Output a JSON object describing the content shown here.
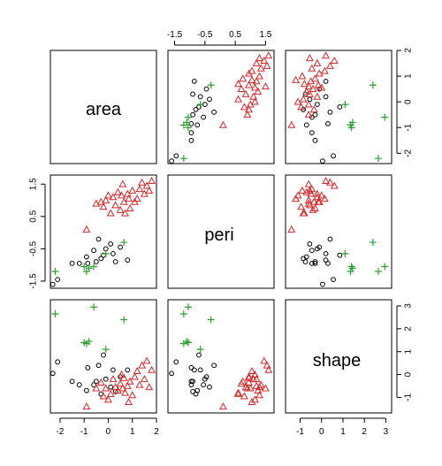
{
  "chart_data": {
    "type": "scatter",
    "kind": "pairs-matrix",
    "variables": [
      "area",
      "peri",
      "shape"
    ],
    "axis_ticks": {
      "area": {
        "labels": [
          "-2",
          "-1",
          "0",
          "1",
          "2"
        ],
        "values": [
          -2,
          -1,
          0,
          1,
          2
        ],
        "range": [
          -2.4,
          2.0
        ]
      },
      "peri": {
        "labels": [
          "-1.5",
          "-0.5",
          "0.5",
          "1.5"
        ],
        "values": [
          -1.5,
          -0.5,
          0.5,
          1.5
        ],
        "range": [
          -1.72,
          1.78
        ]
      },
      "shape": {
        "labels": [
          "-1",
          "0",
          "1",
          "2",
          "3"
        ],
        "values": [
          -1,
          0,
          1,
          2,
          3
        ],
        "range": [
          -1.68,
          3.27
        ]
      }
    },
    "groups": [
      {
        "marker": "circle",
        "color": "#000000",
        "points": [
          {
            "area": -2.1,
            "peri": -1.45,
            "shape": 0.55
          },
          {
            "area": -1.5,
            "peri": -0.95,
            "shape": -0.3
          },
          {
            "area": -1.2,
            "peri": -0.95,
            "shape": -0.45
          },
          {
            "area": -0.9,
            "peri": -0.75,
            "shape": -0.7
          },
          {
            "area": -0.85,
            "peri": -0.95,
            "shape": 0.3
          },
          {
            "area": -0.6,
            "peri": -0.55,
            "shape": -0.45
          },
          {
            "area": -0.5,
            "peri": -0.9,
            "shape": -0.3
          },
          {
            "area": -0.4,
            "peri": -0.2,
            "shape": 0.4
          },
          {
            "area": -0.2,
            "peri": -0.7,
            "shape": 0.85
          },
          {
            "area": -0.1,
            "peri": -0.5,
            "shape": -0.2
          },
          {
            "area": 0.1,
            "peri": -0.35,
            "shape": -0.55
          },
          {
            "area": 0.2,
            "peri": -0.65,
            "shape": 0.2
          },
          {
            "area": 0.3,
            "peri": -0.9,
            "shape": -0.75
          },
          {
            "area": 0.5,
            "peri": -0.45,
            "shape": -0.1
          },
          {
            "area": 0.8,
            "peri": -0.85,
            "shape": 0.2
          },
          {
            "area": -0.3,
            "peri": -0.8,
            "shape": -0.85
          },
          {
            "area": -2.3,
            "peri": -1.6,
            "shape": 0.05
          }
        ]
      },
      {
        "marker": "triangle",
        "color": "#d62728",
        "points": [
          {
            "area": -0.9,
            "peri": 0.1,
            "shape": -1.4
          },
          {
            "area": -0.5,
            "peri": 0.9,
            "shape": -0.6
          },
          {
            "area": -0.3,
            "peri": 0.95,
            "shape": -0.35
          },
          {
            "area": -0.1,
            "peri": 1.0,
            "shape": -0.6
          },
          {
            "area": 0.1,
            "peri": 0.6,
            "shape": -0.85
          },
          {
            "area": 0.2,
            "peri": 1.1,
            "shape": -0.2
          },
          {
            "area": 0.3,
            "peri": 0.85,
            "shape": -0.55
          },
          {
            "area": 0.4,
            "peri": 1.25,
            "shape": -0.7
          },
          {
            "area": 0.5,
            "peri": 0.7,
            "shape": -0.4
          },
          {
            "area": 0.6,
            "peri": 1.5,
            "shape": -0.6
          },
          {
            "area": 0.65,
            "peri": 0.95,
            "shape": -0.15
          },
          {
            "area": 0.7,
            "peri": 0.6,
            "shape": -0.8
          },
          {
            "area": 0.8,
            "peri": 1.2,
            "shape": -0.5
          },
          {
            "area": 0.9,
            "peri": 0.75,
            "shape": -0.3
          },
          {
            "area": 1.0,
            "peri": 1.3,
            "shape": -0.9
          },
          {
            "area": 1.1,
            "peri": 0.95,
            "shape": -0.1
          },
          {
            "area": 1.2,
            "peri": 1.05,
            "shape": 0.15
          },
          {
            "area": 1.3,
            "peri": 1.35,
            "shape": -0.45
          },
          {
            "area": 1.4,
            "peri": 1.55,
            "shape": 0.4
          },
          {
            "area": 1.5,
            "peri": 1.2,
            "shape": -0.2
          },
          {
            "area": 1.6,
            "peri": 1.45,
            "shape": 0.6
          },
          {
            "area": 1.7,
            "peri": 1.3,
            "shape": -0.55
          },
          {
            "area": 1.8,
            "peri": 1.6,
            "shape": 0.2
          },
          {
            "area": 0.0,
            "peri": 1.15,
            "shape": -1.1
          },
          {
            "area": -0.2,
            "peri": 0.8,
            "shape": -0.95
          },
          {
            "area": 0.55,
            "peri": 1.15,
            "shape": 0.0
          },
          {
            "area": 0.85,
            "peri": 1.05,
            "shape": -1.2
          }
        ]
      },
      {
        "marker": "plus",
        "color": "#2ca02c",
        "points": [
          {
            "area": -2.2,
            "peri": -1.2,
            "shape": 2.65
          },
          {
            "area": -1.0,
            "peri": -1.05,
            "shape": 1.4
          },
          {
            "area": -0.9,
            "peri": -1.2,
            "shape": 1.35
          },
          {
            "area": -0.8,
            "peri": -1.1,
            "shape": 1.45
          },
          {
            "area": -0.6,
            "peri": -1.05,
            "shape": 2.95
          },
          {
            "area": -0.1,
            "peri": -0.65,
            "shape": 1.1
          },
          {
            "area": 0.65,
            "peri": -0.3,
            "shape": 2.4
          }
        ]
      }
    ]
  }
}
